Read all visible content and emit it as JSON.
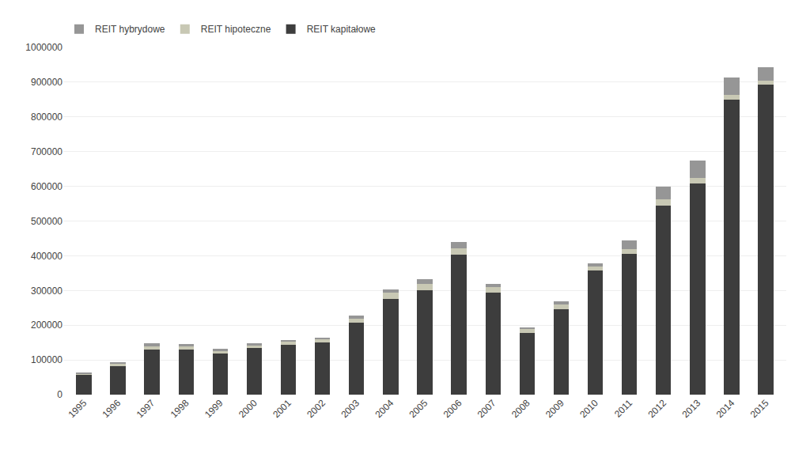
{
  "chart_data": {
    "type": "bar",
    "stacked": true,
    "categories": [
      "1995",
      "1996",
      "1997",
      "1998",
      "1999",
      "2000",
      "2001",
      "2002",
      "2003",
      "2004",
      "2005",
      "2006",
      "2007",
      "2008",
      "2009",
      "2010",
      "2011",
      "2012",
      "2013",
      "2014",
      "2015"
    ],
    "series": [
      {
        "name": "REIT kapitałowe",
        "color": "#3d3d3d",
        "values": [
          57000,
          82000,
          130000,
          130000,
          118000,
          134000,
          143000,
          151000,
          207000,
          275000,
          301000,
          403000,
          294000,
          178000,
          246000,
          358000,
          405000,
          545000,
          609000,
          849000,
          893000
        ]
      },
      {
        "name": "REIT hipoteczne",
        "color": "#c8c8b4",
        "values": [
          4000,
          7000,
          10000,
          10000,
          8000,
          8000,
          9000,
          9000,
          12000,
          18000,
          18000,
          18000,
          16000,
          10000,
          14000,
          12000,
          14000,
          18000,
          16000,
          14000,
          12000
        ]
      },
      {
        "name": "REIT hybrydowe",
        "color": "#969696",
        "values": [
          2000,
          4000,
          7000,
          6000,
          5000,
          5000,
          5000,
          5000,
          8000,
          10000,
          14000,
          18000,
          10000,
          6000,
          8000,
          8000,
          25000,
          35000,
          50000,
          50000,
          38000
        ]
      }
    ],
    "ylim": [
      0,
      1000000
    ],
    "yticks": [
      0,
      100000,
      200000,
      300000,
      400000,
      500000,
      600000,
      700000,
      800000,
      900000,
      1000000
    ],
    "grid": true,
    "legend": "upper left"
  }
}
